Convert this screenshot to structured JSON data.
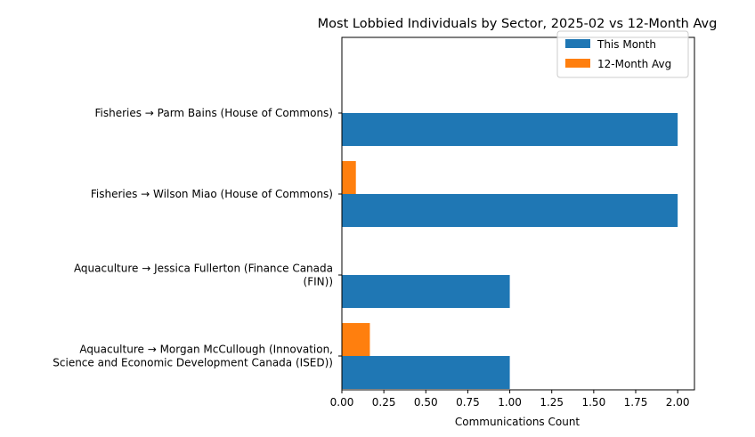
{
  "chart_data": {
    "type": "bar",
    "orientation": "horizontal",
    "title": "Most Lobbied Individuals by Sector, 2025-02 vs 12-Month Avg",
    "xlabel": "Communications Count",
    "ylabel": "",
    "xlim": [
      0,
      2.1
    ],
    "xticks": [
      "0.00",
      "0.25",
      "0.50",
      "0.75",
      "1.00",
      "1.25",
      "1.50",
      "1.75",
      "2.00"
    ],
    "categories": [
      [
        "Fisheries → Parm Bains (House of Commons)"
      ],
      [
        "Fisheries → Wilson Miao (House of Commons)"
      ],
      [
        "Aquaculture → Jessica Fullerton (Finance Canada",
        "(FIN))"
      ],
      [
        "Aquaculture → Morgan McCullough (Innovation,",
        "Science and Economic Development Canada (ISED))"
      ]
    ],
    "series": [
      {
        "name": "This Month",
        "color": "#1f77b4",
        "values": [
          2,
          2,
          1,
          1
        ]
      },
      {
        "name": "12-Month Avg",
        "color": "#ff7f0e",
        "values": [
          0,
          0.0833,
          0,
          0.1667
        ]
      }
    ],
    "legend": "top-right",
    "grid": false
  }
}
